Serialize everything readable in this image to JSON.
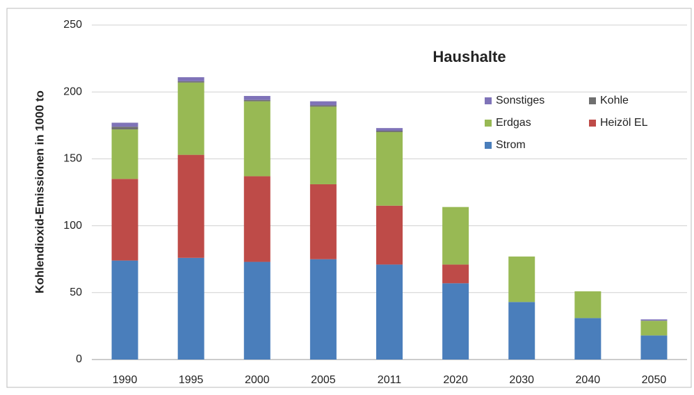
{
  "chart_data": {
    "type": "stacked_bar",
    "title": "Haushalte",
    "y_label": "Kohlendioxid-Emissionen in 1000 to",
    "categories": [
      "1990",
      "1995",
      "2000",
      "2005",
      "2011",
      "2020",
      "2030",
      "2040",
      "2050"
    ],
    "series": [
      {
        "name": "Strom",
        "color": "#4a7ebb",
        "values": [
          74,
          76,
          73,
          75,
          71,
          57,
          43,
          31,
          18
        ]
      },
      {
        "name": "Heizöl EL",
        "color": "#be4b48",
        "values": [
          61,
          77,
          64,
          56,
          44,
          14,
          0,
          0,
          0
        ]
      },
      {
        "name": "Erdgas",
        "color": "#98b954",
        "values": [
          37,
          54,
          56,
          58,
          55,
          43,
          34,
          20,
          11
        ]
      },
      {
        "name": "Kohle",
        "color": "#6f6f6f",
        "values": [
          2,
          1,
          1,
          1,
          1,
          0,
          0,
          0,
          0
        ]
      },
      {
        "name": "Sonstiges",
        "color": "#7f73b8",
        "values": [
          3,
          3,
          3,
          3,
          2,
          0,
          0,
          0,
          1
        ]
      }
    ],
    "ylim": [
      0,
      250
    ],
    "yticks": [
      0,
      50,
      100,
      150,
      200,
      250
    ],
    "grid": true
  }
}
